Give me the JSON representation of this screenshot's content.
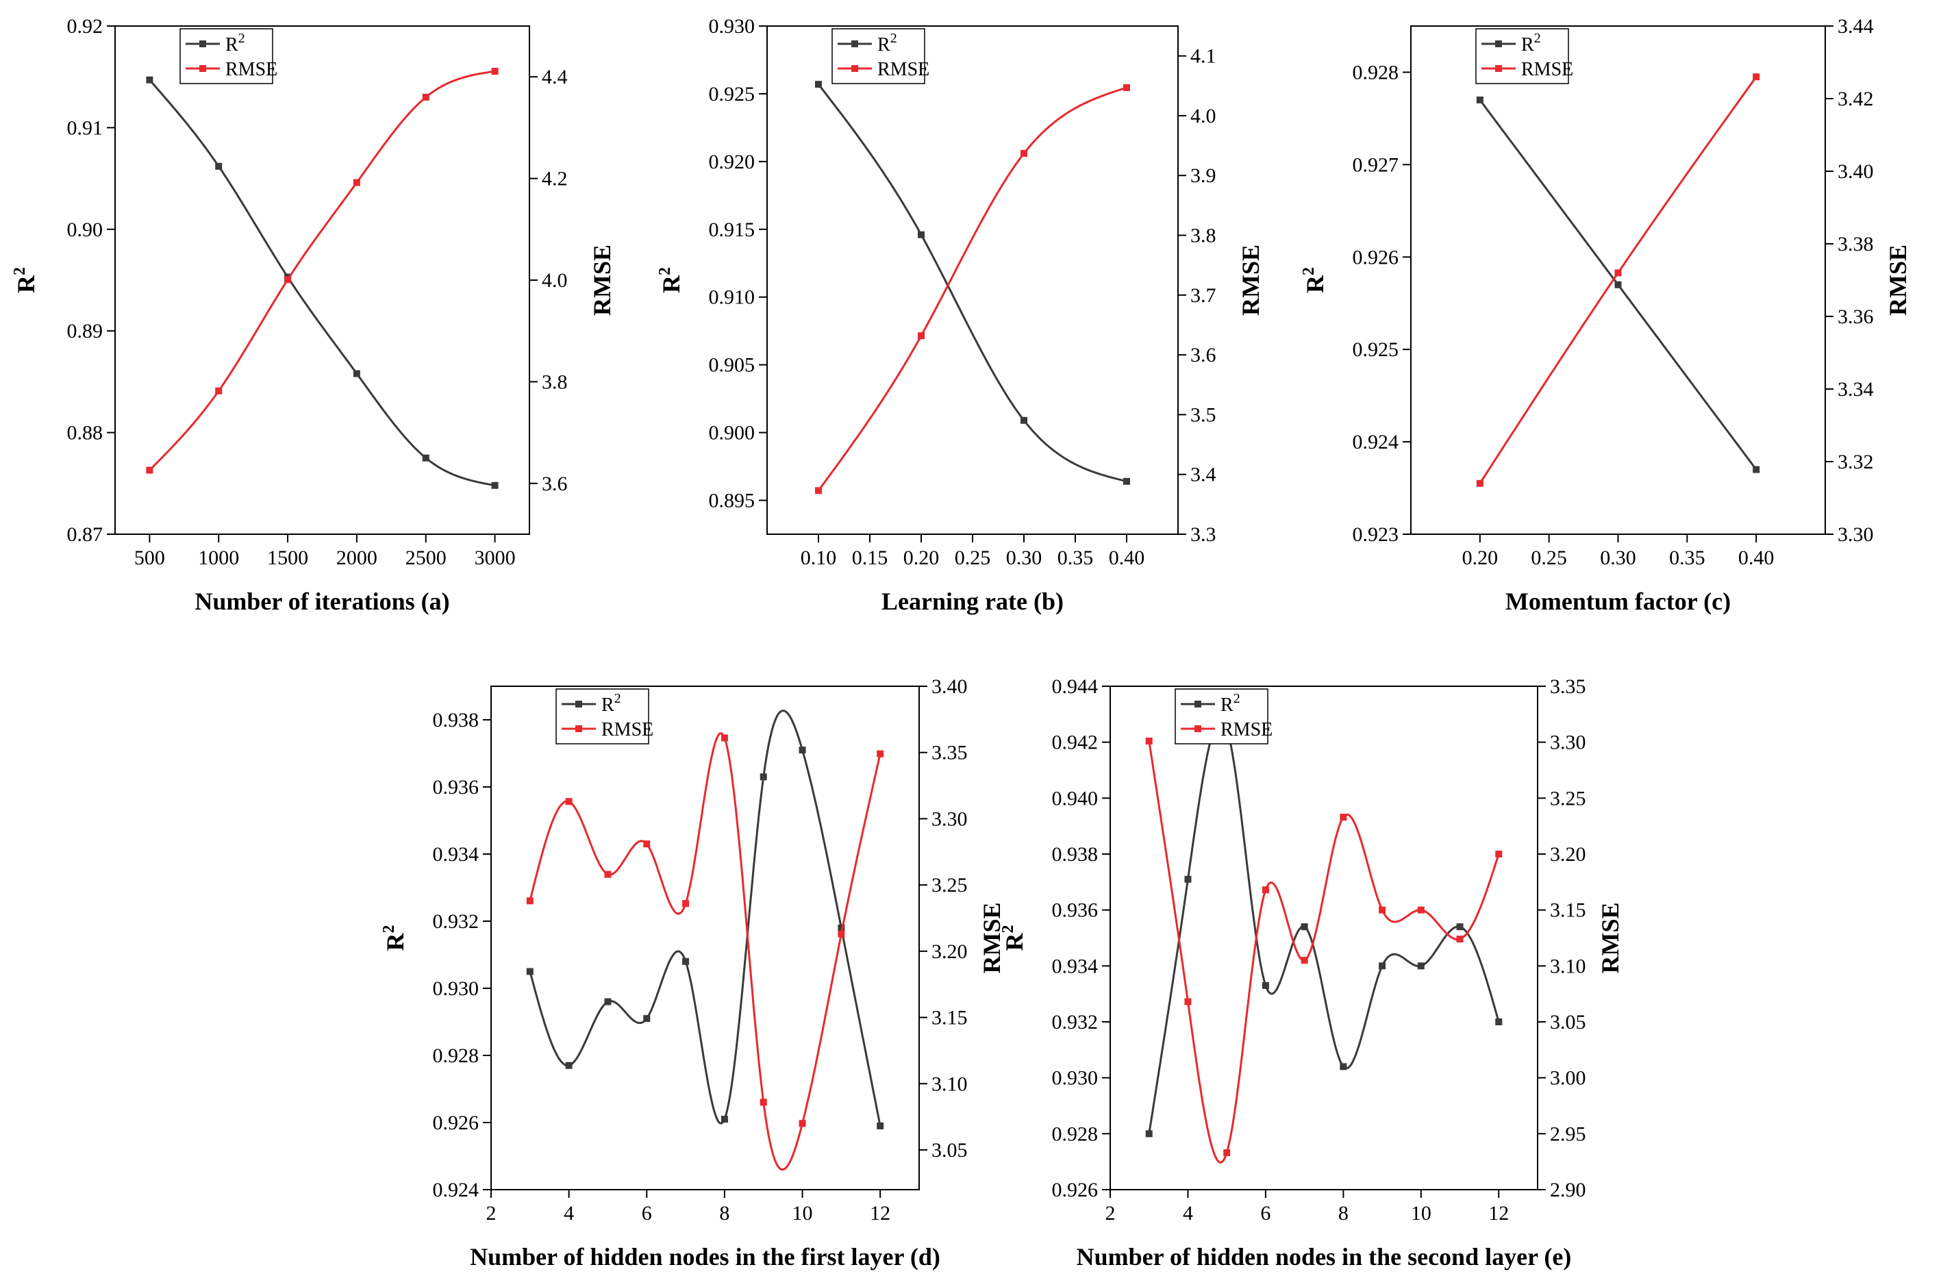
{
  "colors": {
    "r2": "#3a3a3a",
    "rmse": "#e8292e",
    "axis": "#000000"
  },
  "chart_data": [
    {
      "type": "line",
      "xlabel": "Number of iterations (a)",
      "ylabel_left": "R",
      "ylabel_left_sup": "2",
      "ylabel_right": "RMSE",
      "x": [
        500,
        1000,
        1500,
        2000,
        2500,
        3000
      ],
      "xlim": [
        250,
        3250
      ],
      "xticks": [
        500,
        1000,
        1500,
        2000,
        2500,
        3000
      ],
      "xtick_labels": [
        "500",
        "1000",
        "1500",
        "2000",
        "2500",
        "3000"
      ],
      "ylim_left": [
        0.87,
        0.92
      ],
      "yticks_left": [
        0.87,
        0.88,
        0.89,
        0.9,
        0.91,
        0.92
      ],
      "ytick_labels_left": [
        "0.87",
        "0.88",
        "0.89",
        "0.90",
        "0.91",
        "0.92"
      ],
      "ylim_right": [
        3.5,
        4.5
      ],
      "yticks_right": [
        3.6,
        3.8,
        4.0,
        4.2,
        4.4
      ],
      "ytick_labels_right": [
        "3.6",
        "3.8",
        "4.0",
        "4.2",
        "4.4"
      ],
      "series": [
        {
          "name": "R",
          "name_sup": "2",
          "axis": "left",
          "values": [
            0.9147,
            0.9062,
            0.8953,
            0.8858,
            0.8775,
            0.8748
          ]
        },
        {
          "name": "RMSE",
          "name_sup": "",
          "axis": "right",
          "values": [
            3.626,
            3.782,
            4.001,
            4.192,
            4.36,
            4.411
          ]
        }
      ]
    },
    {
      "type": "line",
      "xlabel": "Learning rate (b)",
      "ylabel_left": "R",
      "ylabel_left_sup": "2",
      "ylabel_right": "RMSE",
      "x": [
        0.1,
        0.2,
        0.3,
        0.4
      ],
      "xlim": [
        0.05,
        0.45
      ],
      "xticks": [
        0.1,
        0.15,
        0.2,
        0.25,
        0.3,
        0.35,
        0.4
      ],
      "xtick_labels": [
        "0.10",
        "0.15",
        "0.20",
        "0.25",
        "0.30",
        "0.35",
        "0.40"
      ],
      "ylim_left": [
        0.8925,
        0.93
      ],
      "yticks_left": [
        0.895,
        0.9,
        0.905,
        0.91,
        0.915,
        0.92,
        0.925,
        0.93
      ],
      "ytick_labels_left": [
        "0.895",
        "0.900",
        "0.905",
        "0.910",
        "0.915",
        "0.920",
        "0.925",
        "0.930"
      ],
      "ylim_right": [
        3.3,
        4.15
      ],
      "yticks_right": [
        3.3,
        3.4,
        3.5,
        3.6,
        3.7,
        3.8,
        3.9,
        4.0,
        4.1
      ],
      "ytick_labels_right": [
        "3.3",
        "3.4",
        "3.5",
        "3.6",
        "3.7",
        "3.8",
        "3.9",
        "4.0",
        "4.1"
      ],
      "series": [
        {
          "name": "R",
          "name_sup": "2",
          "axis": "left",
          "values": [
            0.9257,
            0.9146,
            0.9009,
            0.8964
          ]
        },
        {
          "name": "RMSE",
          "name_sup": "",
          "axis": "right",
          "values": [
            3.373,
            3.632,
            3.937,
            4.047
          ]
        }
      ]
    },
    {
      "type": "line",
      "xlabel": "Momentum factor (c)",
      "ylabel_left": "R",
      "ylabel_left_sup": "2",
      "ylabel_right": "RMSE",
      "x": [
        0.2,
        0.3,
        0.4
      ],
      "xlim": [
        0.15,
        0.45
      ],
      "xticks": [
        0.2,
        0.25,
        0.3,
        0.35,
        0.4
      ],
      "xtick_labels": [
        "0.20",
        "0.25",
        "0.30",
        "0.35",
        "0.40"
      ],
      "ylim_left": [
        0.923,
        0.9285
      ],
      "yticks_left": [
        0.923,
        0.924,
        0.925,
        0.926,
        0.927,
        0.928
      ],
      "ytick_labels_left": [
        "0.923",
        "0.924",
        "0.925",
        "0.926",
        "0.927",
        "0.928"
      ],
      "ylim_right": [
        3.3,
        3.44
      ],
      "yticks_right": [
        3.3,
        3.32,
        3.34,
        3.36,
        3.38,
        3.4,
        3.42,
        3.44
      ],
      "ytick_labels_right": [
        "3.30",
        "3.32",
        "3.34",
        "3.36",
        "3.38",
        "3.40",
        "3.42",
        "3.44"
      ],
      "series": [
        {
          "name": "R",
          "name_sup": "2",
          "axis": "left",
          "values": [
            0.9277,
            0.9257,
            0.9237
          ]
        },
        {
          "name": "RMSE",
          "name_sup": "",
          "axis": "right",
          "values": [
            3.314,
            3.372,
            3.426
          ]
        }
      ]
    },
    {
      "type": "line",
      "xlabel": "Number of hidden nodes in the first layer (d)",
      "ylabel_left": "R",
      "ylabel_left_sup": "2",
      "ylabel_right": "RMSE",
      "x": [
        3,
        4,
        5,
        6,
        7,
        8,
        9,
        10,
        11,
        12
      ],
      "xlim": [
        2,
        13
      ],
      "xticks": [
        2,
        4,
        6,
        8,
        10,
        12
      ],
      "xtick_labels": [
        "2",
        "4",
        "6",
        "8",
        "10",
        "12"
      ],
      "ylim_left": [
        0.924,
        0.939
      ],
      "yticks_left": [
        0.924,
        0.926,
        0.928,
        0.93,
        0.932,
        0.934,
        0.936,
        0.938
      ],
      "ytick_labels_left": [
        "0.924",
        "0.926",
        "0.928",
        "0.930",
        "0.932",
        "0.934",
        "0.936",
        "0.938"
      ],
      "ylim_right": [
        3.02,
        3.4
      ],
      "yticks_right": [
        3.05,
        3.1,
        3.15,
        3.2,
        3.25,
        3.3,
        3.35,
        3.4
      ],
      "ytick_labels_right": [
        "3.05",
        "3.10",
        "3.15",
        "3.20",
        "3.25",
        "3.30",
        "3.35",
        "3.40"
      ],
      "series": [
        {
          "name": "R",
          "name_sup": "2",
          "axis": "left",
          "values": [
            0.9305,
            0.9277,
            0.9296,
            0.9291,
            0.9308,
            0.9261,
            0.9363,
            0.9371,
            0.9318,
            0.9259
          ]
        },
        {
          "name": "RMSE",
          "name_sup": "",
          "axis": "right",
          "values": [
            3.238,
            3.313,
            3.258,
            3.281,
            3.236,
            3.361,
            3.086,
            3.07,
            3.213,
            3.349
          ]
        }
      ]
    },
    {
      "type": "line",
      "xlabel": "Number of hidden nodes in the second layer (e)",
      "ylabel_left": "R",
      "ylabel_left_sup": "2",
      "ylabel_right": "RMSE",
      "x": [
        3,
        4,
        5,
        6,
        7,
        8,
        9,
        10,
        11,
        12
      ],
      "xlim": [
        2,
        13
      ],
      "xticks": [
        2,
        4,
        6,
        8,
        10,
        12
      ],
      "xtick_labels": [
        "2",
        "4",
        "6",
        "8",
        "10",
        "12"
      ],
      "ylim_left": [
        0.926,
        0.944
      ],
      "yticks_left": [
        0.926,
        0.928,
        0.93,
        0.932,
        0.934,
        0.936,
        0.938,
        0.94,
        0.942,
        0.944
      ],
      "ytick_labels_left": [
        "0.926",
        "0.928",
        "0.930",
        "0.932",
        "0.934",
        "0.936",
        "0.938",
        "0.940",
        "0.942",
        "0.944"
      ],
      "ylim_right": [
        2.9,
        3.35
      ],
      "yticks_right": [
        2.9,
        2.95,
        3.0,
        3.05,
        3.1,
        3.15,
        3.2,
        3.25,
        3.3,
        3.35
      ],
      "ytick_labels_right": [
        "2.90",
        "2.95",
        "3.00",
        "3.05",
        "3.10",
        "3.15",
        "3.20",
        "3.25",
        "3.30",
        "3.35"
      ],
      "series": [
        {
          "name": "R",
          "name_sup": "2",
          "axis": "left",
          "values": [
            0.928,
            0.9371,
            0.9425,
            0.9333,
            0.9354,
            0.9304,
            0.934,
            0.934,
            0.9354,
            0.932
          ]
        },
        {
          "name": "RMSE",
          "name_sup": "",
          "axis": "right",
          "values": [
            3.301,
            3.068,
            2.933,
            3.168,
            3.105,
            3.233,
            3.15,
            3.15,
            3.124,
            3.2
          ]
        }
      ]
    }
  ]
}
